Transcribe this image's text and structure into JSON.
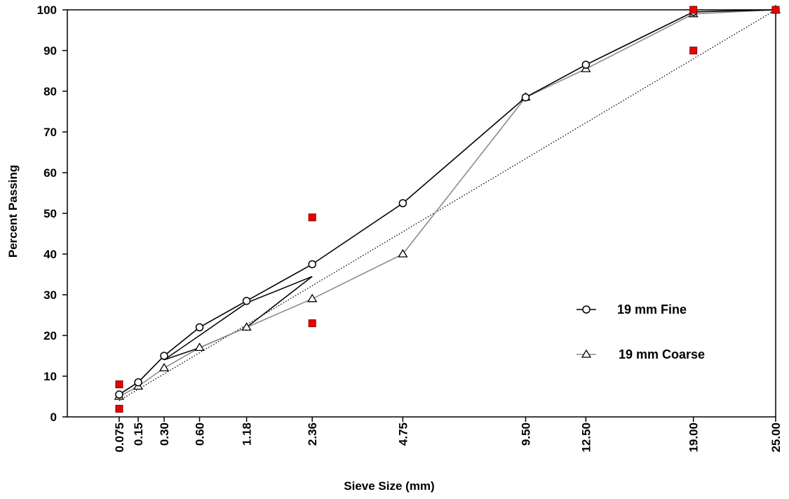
{
  "chart_data": {
    "type": "line",
    "title": "",
    "xlabel": "Sieve Size (mm)",
    "ylabel": "Percent Passing",
    "x_scale": "power-0.45",
    "ylim": [
      0,
      100
    ],
    "y_ticks": [
      "0",
      "10",
      "20",
      "30",
      "40",
      "50",
      "60",
      "70",
      "80",
      "90",
      "100"
    ],
    "x_ticks": [
      {
        "value": 0.075,
        "label": "0.075"
      },
      {
        "value": 0.15,
        "label": "0.15"
      },
      {
        "value": 0.3,
        "label": "0.30"
      },
      {
        "value": 0.6,
        "label": "0.60"
      },
      {
        "value": 1.18,
        "label": "1.18"
      },
      {
        "value": 2.36,
        "label": "2.36"
      },
      {
        "value": 4.75,
        "label": "4.75"
      },
      {
        "value": 9.5,
        "label": "9.50"
      },
      {
        "value": 12.5,
        "label": "12.50"
      },
      {
        "value": 19.0,
        "label": "19.00"
      },
      {
        "value": 25.0,
        "label": "25.00"
      }
    ],
    "grid": false,
    "legend_position": "right",
    "series": [
      {
        "name": "19 mm Fine",
        "marker": "circle",
        "color": "#000000",
        "x": [
          0.075,
          0.15,
          0.3,
          0.6,
          1.18,
          2.36,
          4.75,
          9.5,
          12.5,
          19.0,
          25.0
        ],
        "y": [
          5.5,
          8.5,
          15,
          22,
          28.5,
          37.5,
          52.5,
          78.5,
          86.5,
          99.5,
          100
        ]
      },
      {
        "name": "19 mm Coarse",
        "marker": "triangle",
        "color": "#8c8c8c",
        "x": [
          0.075,
          0.15,
          0.3,
          0.6,
          1.18,
          2.36,
          4.75,
          9.5,
          12.5,
          19.0,
          25.0
        ],
        "y": [
          5,
          7.5,
          12,
          17,
          22,
          29,
          40,
          78.5,
          85.5,
          99,
          100
        ]
      }
    ],
    "maximum_density_line": {
      "style": "dotted",
      "color": "#000000",
      "x": [
        0.075,
        25.0
      ],
      "y": [
        4,
        100
      ]
    },
    "restricted_zone": {
      "color": "#000000",
      "x": [
        0.3,
        0.6,
        1.18,
        2.36,
        1.18,
        0.6,
        0.3
      ],
      "y": [
        14,
        20,
        28,
        34.5,
        22,
        17,
        14
      ]
    },
    "control_points": {
      "marker": "square",
      "color": "#ee0000",
      "x": [
        0.075,
        0.075,
        2.36,
        2.36,
        19.0,
        19.0,
        25.0
      ],
      "y": [
        8,
        2,
        49,
        23,
        90,
        100,
        100
      ]
    }
  }
}
